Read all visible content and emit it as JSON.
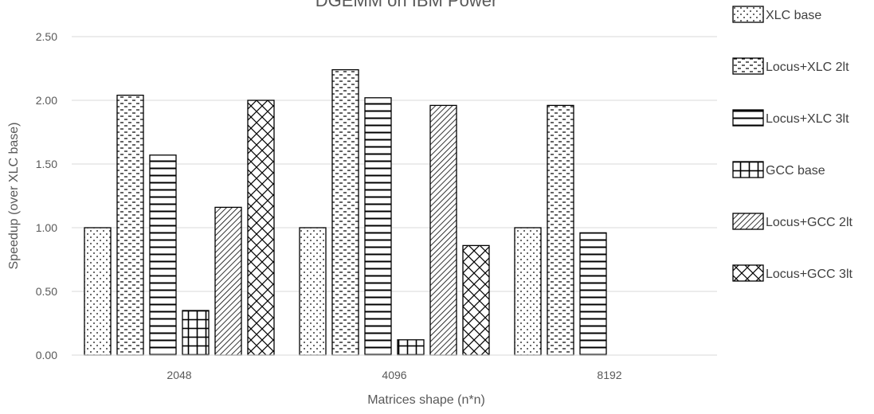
{
  "chart_data": {
    "type": "bar",
    "title": "DGEMM on IBM Power",
    "xlabel": "Matrices shape (n*n)",
    "ylabel": "Speedup (over XLC base)",
    "ylim": [
      0,
      2.5
    ],
    "yticks": [
      "0.00",
      "0.50",
      "1.00",
      "1.50",
      "2.00",
      "2.50"
    ],
    "grid": true,
    "legend_position": "right",
    "categories": [
      "2048",
      "4096",
      "8192"
    ],
    "series": [
      {
        "name": "XLC base",
        "pattern": "dots",
        "values": [
          1.0,
          1.0,
          1.0
        ]
      },
      {
        "name": "Locus+XLC 2lt",
        "pattern": "dashes",
        "values": [
          2.04,
          2.24,
          1.96
        ]
      },
      {
        "name": "Locus+XLC 3lt",
        "pattern": "hlines",
        "values": [
          1.57,
          2.02,
          0.96
        ]
      },
      {
        "name": "GCC base",
        "pattern": "grid",
        "values": [
          0.35,
          0.12,
          null
        ]
      },
      {
        "name": "Locus+GCC 2lt",
        "pattern": "diagonal",
        "values": [
          1.16,
          1.96,
          null
        ]
      },
      {
        "name": "Locus+GCC 3lt",
        "pattern": "zigzag",
        "values": [
          2.0,
          0.86,
          null
        ]
      }
    ]
  }
}
